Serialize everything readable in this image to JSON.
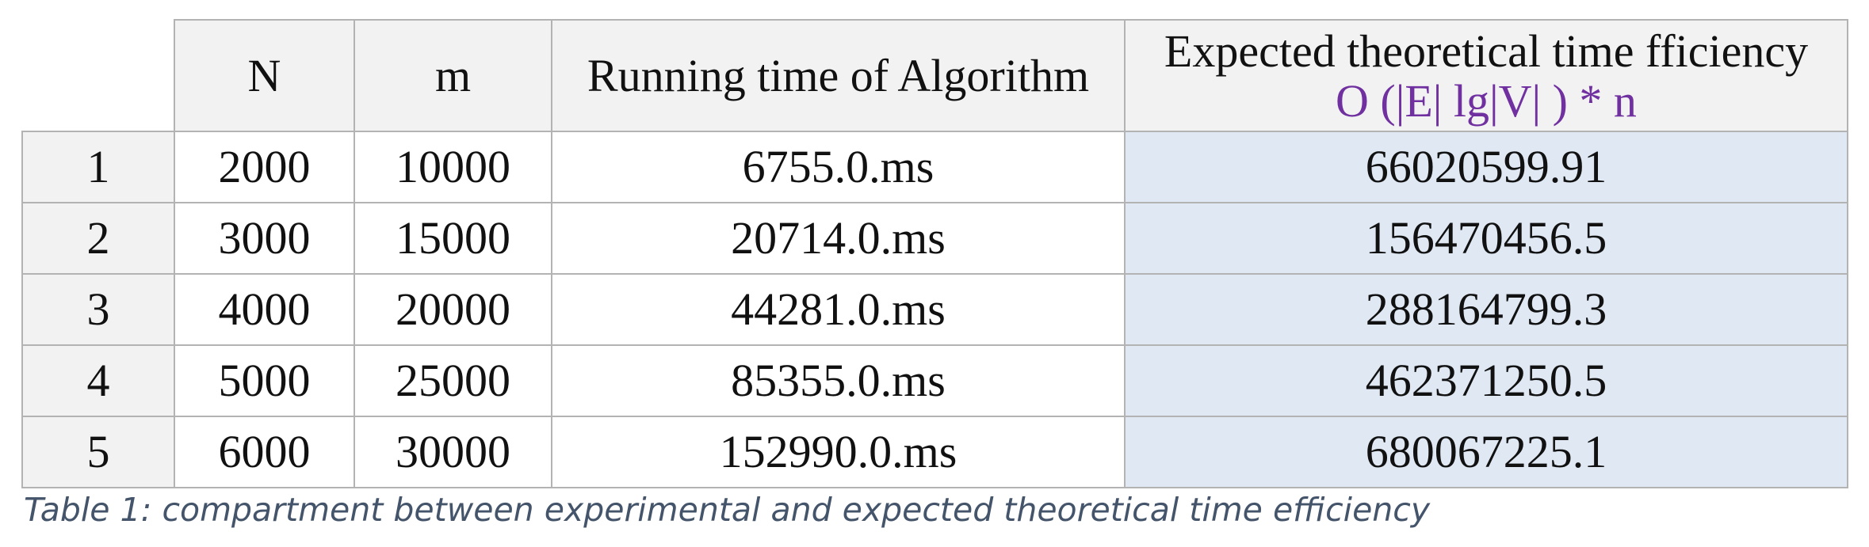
{
  "table": {
    "headers": {
      "n": "N",
      "m": "m",
      "running_time": "Running time of Algorithm",
      "expected_title": "Expected theoretical time fficiency",
      "expected_formula": "O (|E| lg|V| ) * n"
    },
    "rows": [
      {
        "index": "1",
        "n": "2000",
        "m": "10000",
        "running_time": "6755.0.ms",
        "expected": "66020599.91"
      },
      {
        "index": "2",
        "n": "3000",
        "m": "15000",
        "running_time": "20714.0.ms",
        "expected": "156470456.5"
      },
      {
        "index": "3",
        "n": "4000",
        "m": "20000",
        "running_time": "44281.0.ms",
        "expected": "288164799.3"
      },
      {
        "index": "4",
        "n": "5000",
        "m": "25000",
        "running_time": "85355.0.ms",
        "expected": "462371250.5"
      },
      {
        "index": "5",
        "n": "6000",
        "m": "30000",
        "running_time": "152990.0.ms",
        "expected": "680067225.1"
      }
    ],
    "colors": {
      "header_bg": "#f2f2f2",
      "expected_bg": "#dfe8f3",
      "formula": "#7030a0",
      "caption": "#44546a"
    }
  },
  "caption": "Table 1: compartment between experimental and expected theoretical time efficiency"
}
